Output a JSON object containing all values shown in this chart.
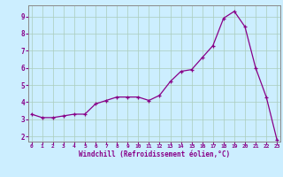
{
  "x_data": [
    0,
    1,
    2,
    3,
    4,
    5,
    6,
    7,
    8,
    9,
    10,
    11,
    12,
    13,
    14,
    15,
    16,
    17,
    18,
    19,
    20,
    21,
    22,
    23
  ],
  "y_data": [
    3.3,
    3.1,
    3.1,
    3.2,
    3.3,
    3.3,
    3.9,
    4.1,
    4.3,
    4.3,
    4.3,
    4.1,
    4.4,
    5.2,
    5.8,
    5.9,
    6.6,
    7.3,
    8.9,
    9.3,
    8.4,
    6.0,
    4.3,
    1.8
  ],
  "line_color": "#880088",
  "marker_color": "#880088",
  "bg_color": "#cceeff",
  "grid_color": "#aaccbb",
  "xlabel": "Windchill (Refroidissement éolien,°C)",
  "xlabel_color": "#880088",
  "tick_color": "#880088",
  "spine_color": "#888888",
  "ylim_bottom": 1.7,
  "ylim_top": 9.65,
  "yticks": [
    2,
    3,
    4,
    5,
    6,
    7,
    8,
    9
  ],
  "xticks": [
    0,
    1,
    2,
    3,
    4,
    5,
    6,
    7,
    8,
    9,
    10,
    11,
    12,
    13,
    14,
    15,
    16,
    17,
    18,
    19,
    20,
    21,
    22,
    23
  ],
  "xlim_left": -0.3,
  "xlim_right": 23.3
}
